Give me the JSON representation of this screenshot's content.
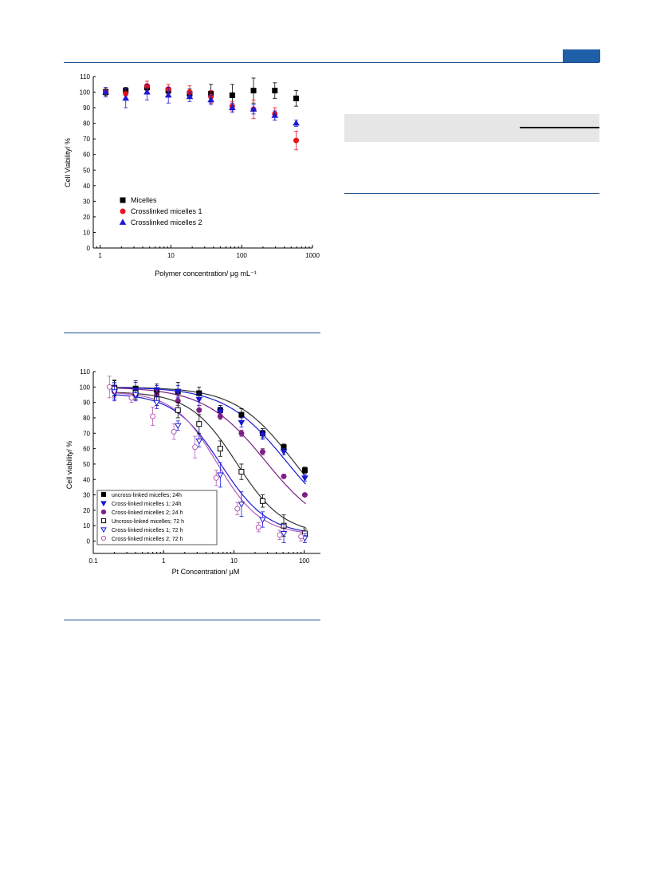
{
  "chart_data": [
    {
      "type": "scatter",
      "title": "",
      "xlabel": "Polymer concentration/ μg mL⁻¹",
      "ylabel": "Cell Viability/ %",
      "xscale": "log",
      "xlim": [
        0.8,
        1000
      ],
      "ylim": [
        0,
        110
      ],
      "xticks": [
        1,
        10,
        100,
        1000
      ],
      "xtick_labels": [
        "1",
        "10",
        "100",
        "1000"
      ],
      "yticks": [
        0,
        10,
        20,
        30,
        40,
        50,
        60,
        70,
        80,
        90,
        100,
        110
      ],
      "ytick_labels": [
        "0",
        "10",
        "20",
        "30",
        "40",
        "50",
        "60",
        "70",
        "80",
        "90",
        "100",
        "110"
      ],
      "grid": false,
      "legend_position": "lower-left",
      "series": [
        {
          "name": "Micelles",
          "marker": "square",
          "color": "#000000",
          "x": [
            1.2,
            2.3,
            4.6,
            9.2,
            18.4,
            36.8,
            73.6,
            147,
            294,
            588
          ],
          "y": [
            100,
            101,
            103,
            101,
            99,
            99,
            98,
            101,
            101,
            96
          ],
          "err": [
            2,
            2,
            2,
            2,
            3,
            6,
            7,
            8,
            5,
            5
          ]
        },
        {
          "name": "Crosslinked micelles 1",
          "marker": "circle",
          "color": "#e8141c",
          "x": [
            1.2,
            2.3,
            4.6,
            9.2,
            18.4,
            36.8,
            73.6,
            147,
            294,
            588
          ],
          "y": [
            100,
            99,
            104,
            102,
            100,
            97,
            91,
            89,
            86,
            69
          ],
          "err": [
            3,
            3,
            3,
            3,
            4,
            4,
            3,
            6,
            4,
            6
          ]
        },
        {
          "name": "Crosslinked micelles 2",
          "marker": "triangle",
          "color": "#1a1ad6",
          "x": [
            1.2,
            2.3,
            4.6,
            9.2,
            18.4,
            36.8,
            73.6,
            147,
            294,
            588
          ],
          "y": [
            100,
            96,
            100,
            98,
            97,
            95,
            90,
            89,
            85,
            80
          ],
          "err": [
            3,
            6,
            5,
            5,
            3,
            3,
            3,
            3,
            3,
            2
          ]
        }
      ]
    },
    {
      "type": "scatter",
      "title": "",
      "xlabel": "Pt Concentration/ μM",
      "ylabel": "Cell viability/ %",
      "xscale": "log",
      "xlim": [
        0.1,
        170
      ],
      "ylim": [
        -8,
        110
      ],
      "xticks": [
        0.1,
        1,
        10,
        100
      ],
      "xtick_labels": [
        "0.1",
        "1",
        "10",
        "100"
      ],
      "yticks": [
        0,
        10,
        20,
        30,
        40,
        50,
        60,
        70,
        80,
        90,
        100,
        110
      ],
      "ytick_labels": [
        "0",
        "10",
        "20",
        "30",
        "40",
        "50",
        "60",
        "70",
        "80",
        "90",
        "100",
        "110"
      ],
      "grid": false,
      "legend_position": "lower-left",
      "series": [
        {
          "name": "uncross-linked micelles; 24h",
          "marker": "square",
          "filled": true,
          "color": "#000000",
          "x": [
            0.2,
            0.4,
            0.8,
            1.6,
            3.2,
            6.4,
            12.8,
            25.6,
            51.2,
            102
          ],
          "y": [
            99.5,
            99,
            98,
            97,
            96,
            85,
            82,
            70,
            61,
            46
          ],
          "err": [
            5,
            5,
            4,
            6,
            4,
            3,
            4,
            3,
            2,
            2
          ],
          "fit": {
            "top": 100,
            "bottom": 4,
            "ec50": 70,
            "hill": 1.05
          }
        },
        {
          "name": "Cross-linked micelles 1; 24h",
          "marker": "triangle-down",
          "filled": true,
          "color": "#1a1ad6",
          "x": [
            0.2,
            0.4,
            0.8,
            1.6,
            3.2,
            6.4,
            12.8,
            25.6,
            51.2,
            102
          ],
          "y": [
            97,
            98,
            98,
            97,
            92,
            84,
            77,
            69,
            58,
            41
          ],
          "err": [
            5,
            5,
            3,
            4,
            4,
            3,
            3,
            3,
            2,
            2
          ],
          "fit": {
            "top": 100,
            "bottom": 4,
            "ec50": 55,
            "hill": 1.0
          }
        },
        {
          "name": "Cross-linked micelles 2; 24 h",
          "marker": "circle",
          "filled": true,
          "color": "#7b1f86",
          "x": [
            0.2,
            0.4,
            0.8,
            1.6,
            3.2,
            6.4,
            12.8,
            25.6,
            51.2,
            102
          ],
          "y": [
            97,
            96,
            95,
            91,
            85,
            81,
            70,
            58,
            42,
            30
          ],
          "err": [
            4,
            4,
            3,
            3,
            3,
            2,
            2,
            2,
            1,
            1
          ],
          "fit": {
            "top": 100,
            "bottom": 4,
            "ec50": 28,
            "hill": 1.0
          }
        },
        {
          "name": "Uncross-linked micelles; 72 h",
          "marker": "square",
          "filled": false,
          "color": "#000000",
          "x": [
            0.2,
            0.4,
            0.8,
            1.6,
            3.2,
            6.4,
            12.8,
            25.6,
            51.2,
            102
          ],
          "y": [
            99,
            96,
            92,
            85,
            76,
            60,
            45,
            26,
            10,
            5
          ],
          "err": [
            5,
            4,
            4,
            5,
            6,
            5,
            5,
            4,
            7,
            3
          ],
          "fit": {
            "top": 97,
            "bottom": 4,
            "ec50": 11,
            "hill": 1.3
          }
        },
        {
          "name": "Cross-linked micelles 1; 72 h",
          "marker": "triangle-down",
          "filled": false,
          "color": "#1a1ad6",
          "x": [
            0.2,
            0.4,
            0.8,
            1.6,
            3.2,
            6.4,
            12.8,
            25.6,
            51.2,
            102
          ],
          "y": [
            97,
            95,
            90,
            75,
            65,
            43,
            24,
            14,
            5,
            2
          ],
          "err": [
            6,
            4,
            4,
            3,
            4,
            8,
            8,
            5,
            6,
            3
          ],
          "fit": {
            "top": 96,
            "bottom": 4,
            "ec50": 6.5,
            "hill": 1.3
          }
        },
        {
          "name": "Cross-linked micelles 2; 72 h",
          "marker": "circle",
          "filled": false,
          "color": "#b55ab8",
          "x": [
            0.17,
            0.35,
            0.7,
            1.4,
            2.8,
            5.6,
            11.2,
            22.4,
            44.8,
            90
          ],
          "y": [
            100,
            93,
            81,
            71,
            61,
            41,
            21,
            9,
            4,
            3
          ],
          "err": [
            7,
            3,
            6,
            5,
            7,
            5,
            4,
            3,
            3,
            3
          ],
          "fit": {
            "top": 97,
            "bottom": 4,
            "ec50": 5.8,
            "hill": 1.4
          }
        }
      ]
    }
  ]
}
